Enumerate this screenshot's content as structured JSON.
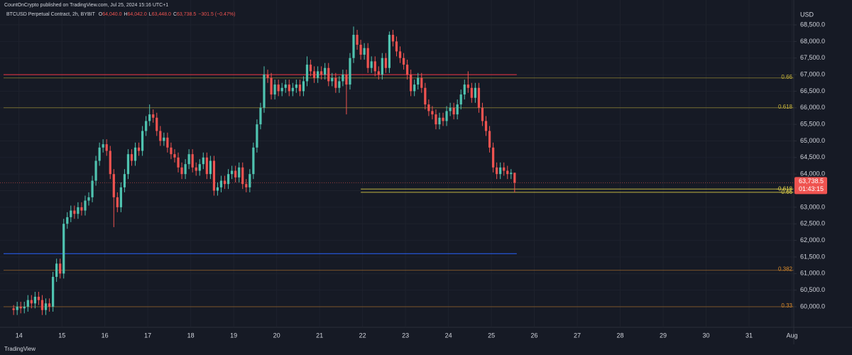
{
  "chart_data": {
    "type": "candlestick",
    "publisher": "CountOnCrypto published on TradingView.com, Jul 25, 2024 15:16 UTC+1",
    "symbol": "BTCUSD Perpetual Contract, 2h, BYBIT",
    "ohlc_prefixes": [
      "O",
      "H",
      "L",
      "C"
    ],
    "ohlc_labels": [
      "64,040.0",
      "64,042.0",
      "63,448.0",
      "63,738.5"
    ],
    "change": "−301.5 (−0.47%)",
    "currency": "USD",
    "brand": "TradingView",
    "up_color": "#4fc3b0",
    "down_color": "#ef5350",
    "grid": true,
    "xlim": [
      -3.8,
      218
    ],
    "xticks": [
      {
        "value": 1.5,
        "label": "14"
      },
      {
        "value": 13.5,
        "label": "15"
      },
      {
        "value": 25.5,
        "label": "16"
      },
      {
        "value": 37.5,
        "label": "17"
      },
      {
        "value": 49.5,
        "label": "18"
      },
      {
        "value": 61.5,
        "label": "19"
      },
      {
        "value": 73.5,
        "label": "20"
      },
      {
        "value": 85.5,
        "label": "21"
      },
      {
        "value": 97.5,
        "label": "22"
      },
      {
        "value": 109.5,
        "label": "23"
      },
      {
        "value": 121.5,
        "label": "24"
      },
      {
        "value": 133.5,
        "label": "25"
      },
      {
        "value": 145.5,
        "label": "26"
      },
      {
        "value": 157.5,
        "label": "27"
      },
      {
        "value": 169.5,
        "label": "28"
      },
      {
        "value": 181.5,
        "label": "29"
      },
      {
        "value": 193.5,
        "label": "30"
      },
      {
        "value": 205.5,
        "label": "31"
      },
      {
        "value": 217.5,
        "label": "Aug"
      }
    ],
    "ylim": [
      59400,
      69250
    ],
    "yticks": [
      {
        "value": 60000,
        "label": "60,000.0"
      },
      {
        "value": 60500,
        "label": "60,500.0"
      },
      {
        "value": 61000,
        "label": "61,000.0"
      },
      {
        "value": 61500,
        "label": "61,500.0"
      },
      {
        "value": 62000,
        "label": "62,000.0"
      },
      {
        "value": 62500,
        "label": "62,500.0"
      },
      {
        "value": 63000,
        "label": "63,000.0"
      },
      {
        "value": 63500,
        "label": "63,500.0"
      },
      {
        "value": 64000,
        "label": "64,000.0"
      },
      {
        "value": 64500,
        "label": "64,500.0"
      },
      {
        "value": 65000,
        "label": "65,000.0"
      },
      {
        "value": 65500,
        "label": "65,500.0"
      },
      {
        "value": 66000,
        "label": "66,000.0"
      },
      {
        "value": 66500,
        "label": "66,500.0"
      },
      {
        "value": 67000,
        "label": "67,000.0"
      },
      {
        "value": 67500,
        "label": "67,500.0"
      },
      {
        "value": 68000,
        "label": "68,000.0"
      },
      {
        "value": 68500,
        "label": "68,500.0"
      }
    ],
    "hlines": [
      {
        "value": 67000,
        "color": "#f23645"
      },
      {
        "value": 61600,
        "color": "#2962ff"
      }
    ],
    "levels": [
      {
        "label": "0.66",
        "value": 66900,
        "color": "#c9b53a"
      },
      {
        "label": "0.618",
        "value": 66000,
        "color": "#c9b53a"
      },
      {
        "label": "0.382",
        "value": 61100,
        "color": "#d98a2b"
      },
      {
        "label": "0.33",
        "value": 60000,
        "color": "#d98a2b"
      },
      {
        "label": "-0.618",
        "value": 63550,
        "color": "#e8d84a"
      },
      {
        "label": "-0.66",
        "value": 63450,
        "color": "#e8d84a"
      }
    ],
    "last_price": {
      "value": 63738.5,
      "label": "63,738.5"
    },
    "countdown": "01:43:15",
    "ohlc": [
      [
        59950,
        60050,
        59750,
        59900
      ],
      [
        59900,
        60150,
        59750,
        60000
      ],
      [
        60000,
        60150,
        59800,
        59950
      ],
      [
        59950,
        60150,
        59800,
        60000
      ],
      [
        60000,
        60350,
        59850,
        60200
      ],
      [
        60200,
        60350,
        59950,
        60100
      ],
      [
        60100,
        60450,
        59950,
        60300
      ],
      [
        60300,
        60450,
        60050,
        60200
      ],
      [
        60200,
        60350,
        59750,
        59900
      ],
      [
        59900,
        60250,
        59750,
        60100
      ],
      [
        60100,
        60250,
        59850,
        60000
      ],
      [
        60000,
        61050,
        59850,
        60900
      ],
      [
        60900,
        61450,
        60750,
        61300
      ],
      [
        61300,
        61450,
        60850,
        61000
      ],
      [
        61000,
        62650,
        60850,
        62500
      ],
      [
        62500,
        62850,
        62350,
        62700
      ],
      [
        62700,
        63050,
        62550,
        62900
      ],
      [
        62900,
        63050,
        62650,
        62800
      ],
      [
        62800,
        63150,
        62650,
        63000
      ],
      [
        63000,
        63150,
        62750,
        62900
      ],
      [
        62900,
        63350,
        62750,
        63200
      ],
      [
        63200,
        63450,
        63050,
        63300
      ],
      [
        63300,
        63950,
        63150,
        63800
      ],
      [
        63800,
        64550,
        63650,
        64400
      ],
      [
        64400,
        64950,
        64250,
        64800
      ],
      [
        64800,
        65050,
        64650,
        64900
      ],
      [
        64900,
        65050,
        64550,
        64700
      ],
      [
        64700,
        64850,
        63850,
        64000
      ],
      [
        64000,
        64150,
        62400,
        63300
      ],
      [
        63300,
        63450,
        62850,
        63000
      ],
      [
        63000,
        63750,
        62850,
        63600
      ],
      [
        63600,
        64150,
        63450,
        64000
      ],
      [
        64000,
        64750,
        63850,
        64600
      ],
      [
        64600,
        64750,
        64250,
        64400
      ],
      [
        64400,
        64950,
        64250,
        64800
      ],
      [
        64800,
        64950,
        64550,
        64700
      ],
      [
        64700,
        65450,
        64550,
        65300
      ],
      [
        65300,
        65750,
        65150,
        65600
      ],
      [
        65600,
        66100,
        65450,
        65800
      ],
      [
        65800,
        65950,
        65550,
        65700
      ],
      [
        65700,
        65850,
        65150,
        65300
      ],
      [
        65300,
        65450,
        64850,
        65000
      ],
      [
        65000,
        65250,
        64850,
        65100
      ],
      [
        65100,
        65250,
        64650,
        64800
      ],
      [
        64800,
        64950,
        64450,
        64600
      ],
      [
        64600,
        64750,
        64350,
        64500
      ],
      [
        64500,
        64650,
        64050,
        64200
      ],
      [
        64200,
        64350,
        63850,
        64000
      ],
      [
        64000,
        64450,
        63850,
        64300
      ],
      [
        64300,
        64750,
        64150,
        64600
      ],
      [
        64600,
        64750,
        64050,
        64200
      ],
      [
        64200,
        64350,
        63950,
        64100
      ],
      [
        64100,
        64450,
        63950,
        64300
      ],
      [
        64300,
        64650,
        64150,
        64500
      ],
      [
        64500,
        64650,
        63850,
        64000
      ],
      [
        64000,
        64550,
        63850,
        64400
      ],
      [
        64400,
        64550,
        63350,
        63500
      ],
      [
        63500,
        63750,
        63350,
        63600
      ],
      [
        63600,
        63950,
        63450,
        63800
      ],
      [
        63800,
        63950,
        63550,
        63700
      ],
      [
        63700,
        64150,
        63550,
        64000
      ],
      [
        64000,
        64250,
        63850,
        64100
      ],
      [
        64100,
        64250,
        63750,
        63900
      ],
      [
        63900,
        64350,
        63750,
        64200
      ],
      [
        64200,
        64350,
        63550,
        63700
      ],
      [
        63700,
        63850,
        63450,
        63600
      ],
      [
        63600,
        64150,
        63450,
        64000
      ],
      [
        64000,
        64950,
        63850,
        64800
      ],
      [
        64800,
        65650,
        64650,
        65500
      ],
      [
        65500,
        66150,
        65350,
        66000
      ],
      [
        66000,
        67250,
        65850,
        67000
      ],
      [
        67000,
        67150,
        66750,
        66900
      ],
      [
        66900,
        67050,
        66250,
        66400
      ],
      [
        66400,
        66850,
        66250,
        66700
      ],
      [
        66700,
        66850,
        66350,
        66500
      ],
      [
        66500,
        66750,
        66350,
        66600
      ],
      [
        66600,
        66850,
        66450,
        66700
      ],
      [
        66700,
        66850,
        66350,
        66500
      ],
      [
        66500,
        66750,
        66350,
        66600
      ],
      [
        66600,
        66850,
        66450,
        66700
      ],
      [
        66700,
        66850,
        66350,
        66500
      ],
      [
        66500,
        66950,
        66350,
        66800
      ],
      [
        66800,
        67550,
        66650,
        67300
      ],
      [
        67300,
        67450,
        66950,
        67100
      ],
      [
        67100,
        67250,
        66750,
        66900
      ],
      [
        66900,
        67250,
        66750,
        67100
      ],
      [
        67100,
        67250,
        66850,
        67000
      ],
      [
        67000,
        67350,
        66850,
        67200
      ],
      [
        67200,
        67350,
        66650,
        66800
      ],
      [
        66800,
        67050,
        66650,
        66900
      ],
      [
        66900,
        67050,
        66450,
        66600
      ],
      [
        66600,
        66950,
        66450,
        66800
      ],
      [
        66800,
        67150,
        66650,
        67000
      ],
      [
        67000,
        67150,
        65800,
        66700
      ],
      [
        66700,
        67650,
        66550,
        67500
      ],
      [
        67500,
        68450,
        67350,
        68200
      ],
      [
        68200,
        68350,
        67750,
        67900
      ],
      [
        67900,
        68050,
        67450,
        67600
      ],
      [
        67600,
        67950,
        67450,
        67800
      ],
      [
        67800,
        67950,
        67050,
        67200
      ],
      [
        67200,
        67550,
        67050,
        67400
      ],
      [
        67400,
        67550,
        66950,
        67100
      ],
      [
        67100,
        67250,
        66850,
        67000
      ],
      [
        67000,
        67650,
        66850,
        67500
      ],
      [
        67500,
        67650,
        67050,
        67200
      ],
      [
        67200,
        68300,
        67050,
        68200
      ],
      [
        68200,
        68350,
        67850,
        68000
      ],
      [
        68000,
        68150,
        67550,
        67700
      ],
      [
        67700,
        67850,
        67350,
        67500
      ],
      [
        67500,
        67650,
        67150,
        67300
      ],
      [
        67300,
        67450,
        66850,
        67000
      ],
      [
        67000,
        67150,
        66350,
        66500
      ],
      [
        66500,
        66850,
        66350,
        66700
      ],
      [
        66700,
        67050,
        66550,
        66900
      ],
      [
        66900,
        67050,
        66450,
        66600
      ],
      [
        66600,
        66750,
        65950,
        66100
      ],
      [
        66100,
        66250,
        65750,
        65900
      ],
      [
        65900,
        66050,
        65650,
        65800
      ],
      [
        65800,
        65950,
        65350,
        65500
      ],
      [
        65500,
        65850,
        65350,
        65700
      ],
      [
        65700,
        65850,
        65450,
        65600
      ],
      [
        65600,
        66050,
        65450,
        65900
      ],
      [
        65900,
        66150,
        65750,
        66000
      ],
      [
        66000,
        66150,
        65650,
        65800
      ],
      [
        65800,
        66250,
        65650,
        66100
      ],
      [
        66100,
        66550,
        65950,
        66400
      ],
      [
        66400,
        66850,
        66250,
        66700
      ],
      [
        66700,
        67100,
        66450,
        66600
      ],
      [
        66600,
        66750,
        66150,
        66300
      ],
      [
        66300,
        66750,
        66150,
        66600
      ],
      [
        66600,
        66750,
        65850,
        66000
      ],
      [
        66000,
        66150,
        65450,
        65600
      ],
      [
        65600,
        65750,
        65150,
        65300
      ],
      [
        65300,
        65450,
        64650,
        64800
      ],
      [
        64800,
        64950,
        64050,
        64200
      ],
      [
        64200,
        64350,
        63850,
        64000
      ],
      [
        64000,
        64350,
        63850,
        64200
      ],
      [
        64200,
        64350,
        63950,
        64100
      ],
      [
        64100,
        64250,
        63850,
        64000
      ],
      [
        64000,
        64150,
        63850,
        64040
      ],
      [
        64040,
        64042,
        63448,
        63738.5
      ]
    ]
  }
}
